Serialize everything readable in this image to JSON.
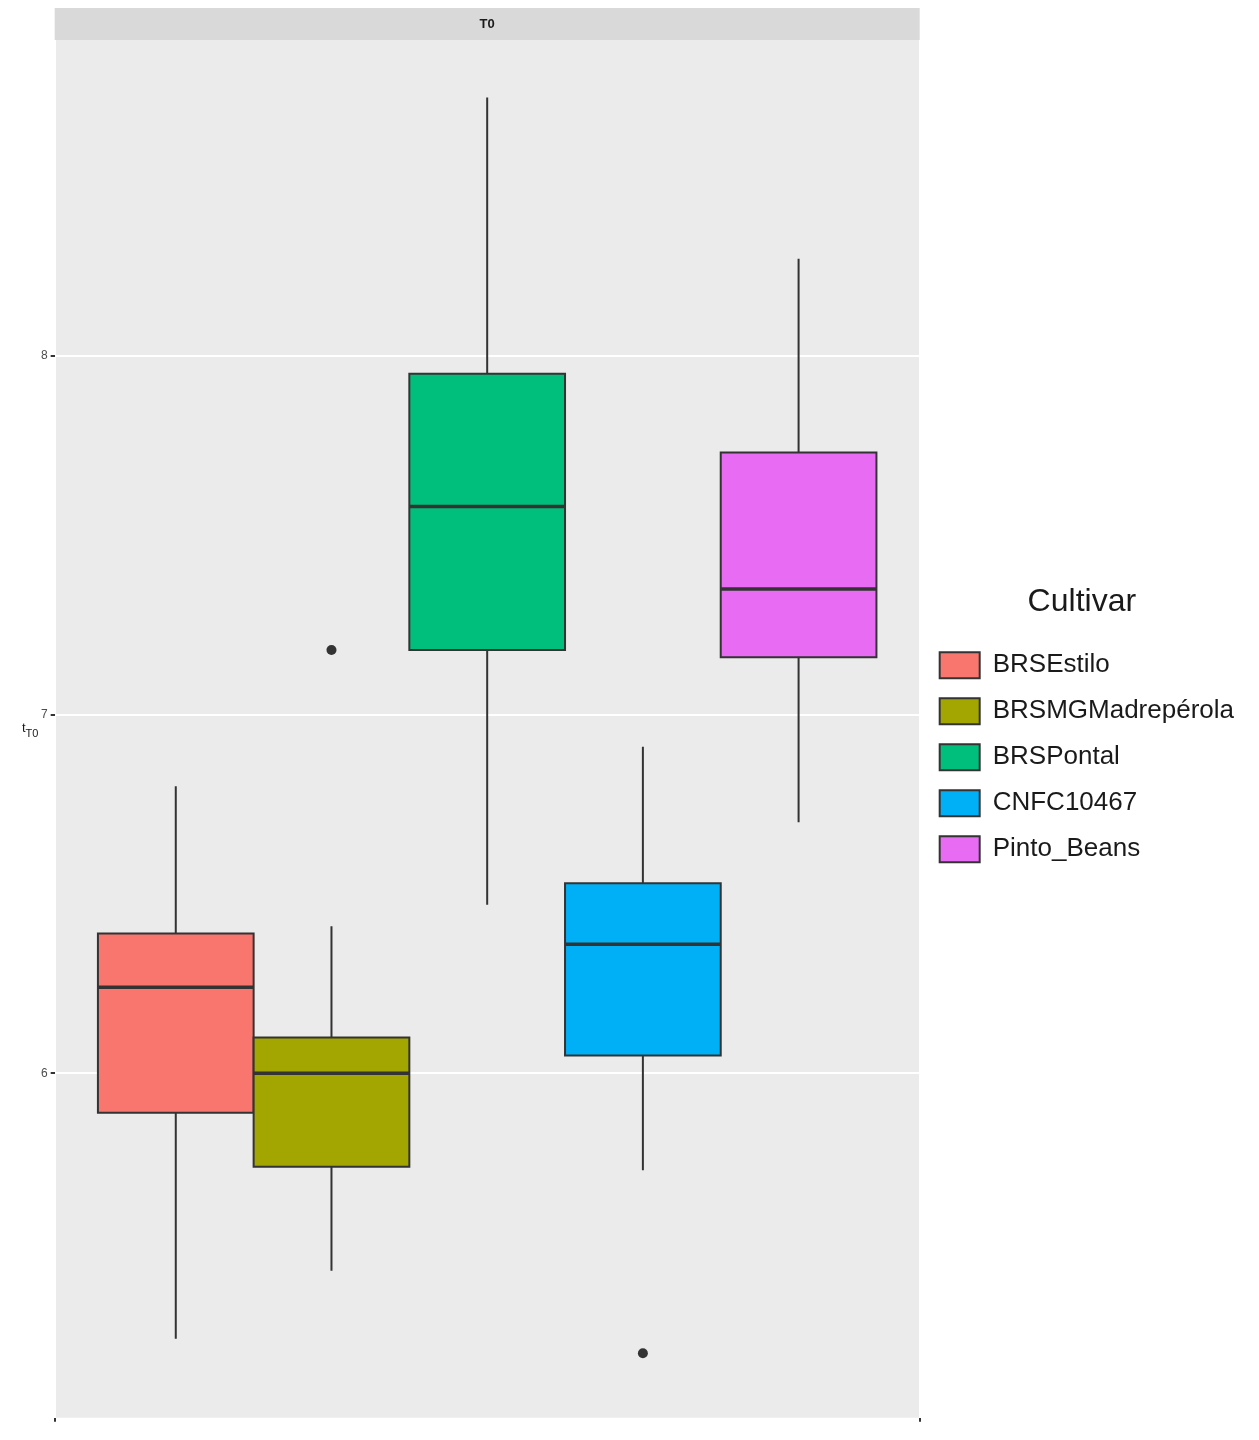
{
  "chart_data": {
    "type": "box",
    "title": "T0",
    "ylabel": "t$_{T0}$",
    "legend_title": "Cultivar",
    "categories": [
      null
    ],
    "ylim": [
      5.04,
      8.88
    ],
    "yticks": [
      6,
      7,
      8
    ],
    "grid": true,
    "tick_labels": "y",
    "legend": "right",
    "series": [
      {
        "name": "BRSEstilo",
        "color": "#f8766d",
        "boxes": [
          {
            "low": 5.26,
            "q1": 5.89,
            "median": 6.24,
            "q3": 6.39,
            "high": 6.8
          }
        ]
      },
      {
        "name": "BRSMGMadrepérola",
        "color": "#a3a500",
        "boxes": [
          {
            "low": 5.45,
            "q1": 5.74,
            "median": 6.0,
            "q3": 6.1,
            "high": 6.41,
            "outliers": [
              7.18
            ]
          }
        ]
      },
      {
        "name": "BRSPontal",
        "color": "#00bf7d",
        "boxes": [
          {
            "low": 6.47,
            "q1": 7.18,
            "median": 7.58,
            "q3": 7.95,
            "high": 8.72
          }
        ]
      },
      {
        "name": "CNFC10467",
        "color": "#00b0f6",
        "boxes": [
          {
            "low": 5.73,
            "q1": 6.05,
            "median": 6.36,
            "q3": 6.53,
            "high": 6.91,
            "outliers": [
              5.22
            ]
          }
        ]
      },
      {
        "name": "Pinto_Beans",
        "color": "#e76bf3",
        "boxes": [
          {
            "low": 6.7,
            "q1": 7.16,
            "median": 7.35,
            "q3": 7.73,
            "high": 8.27
          }
        ]
      }
    ]
  }
}
